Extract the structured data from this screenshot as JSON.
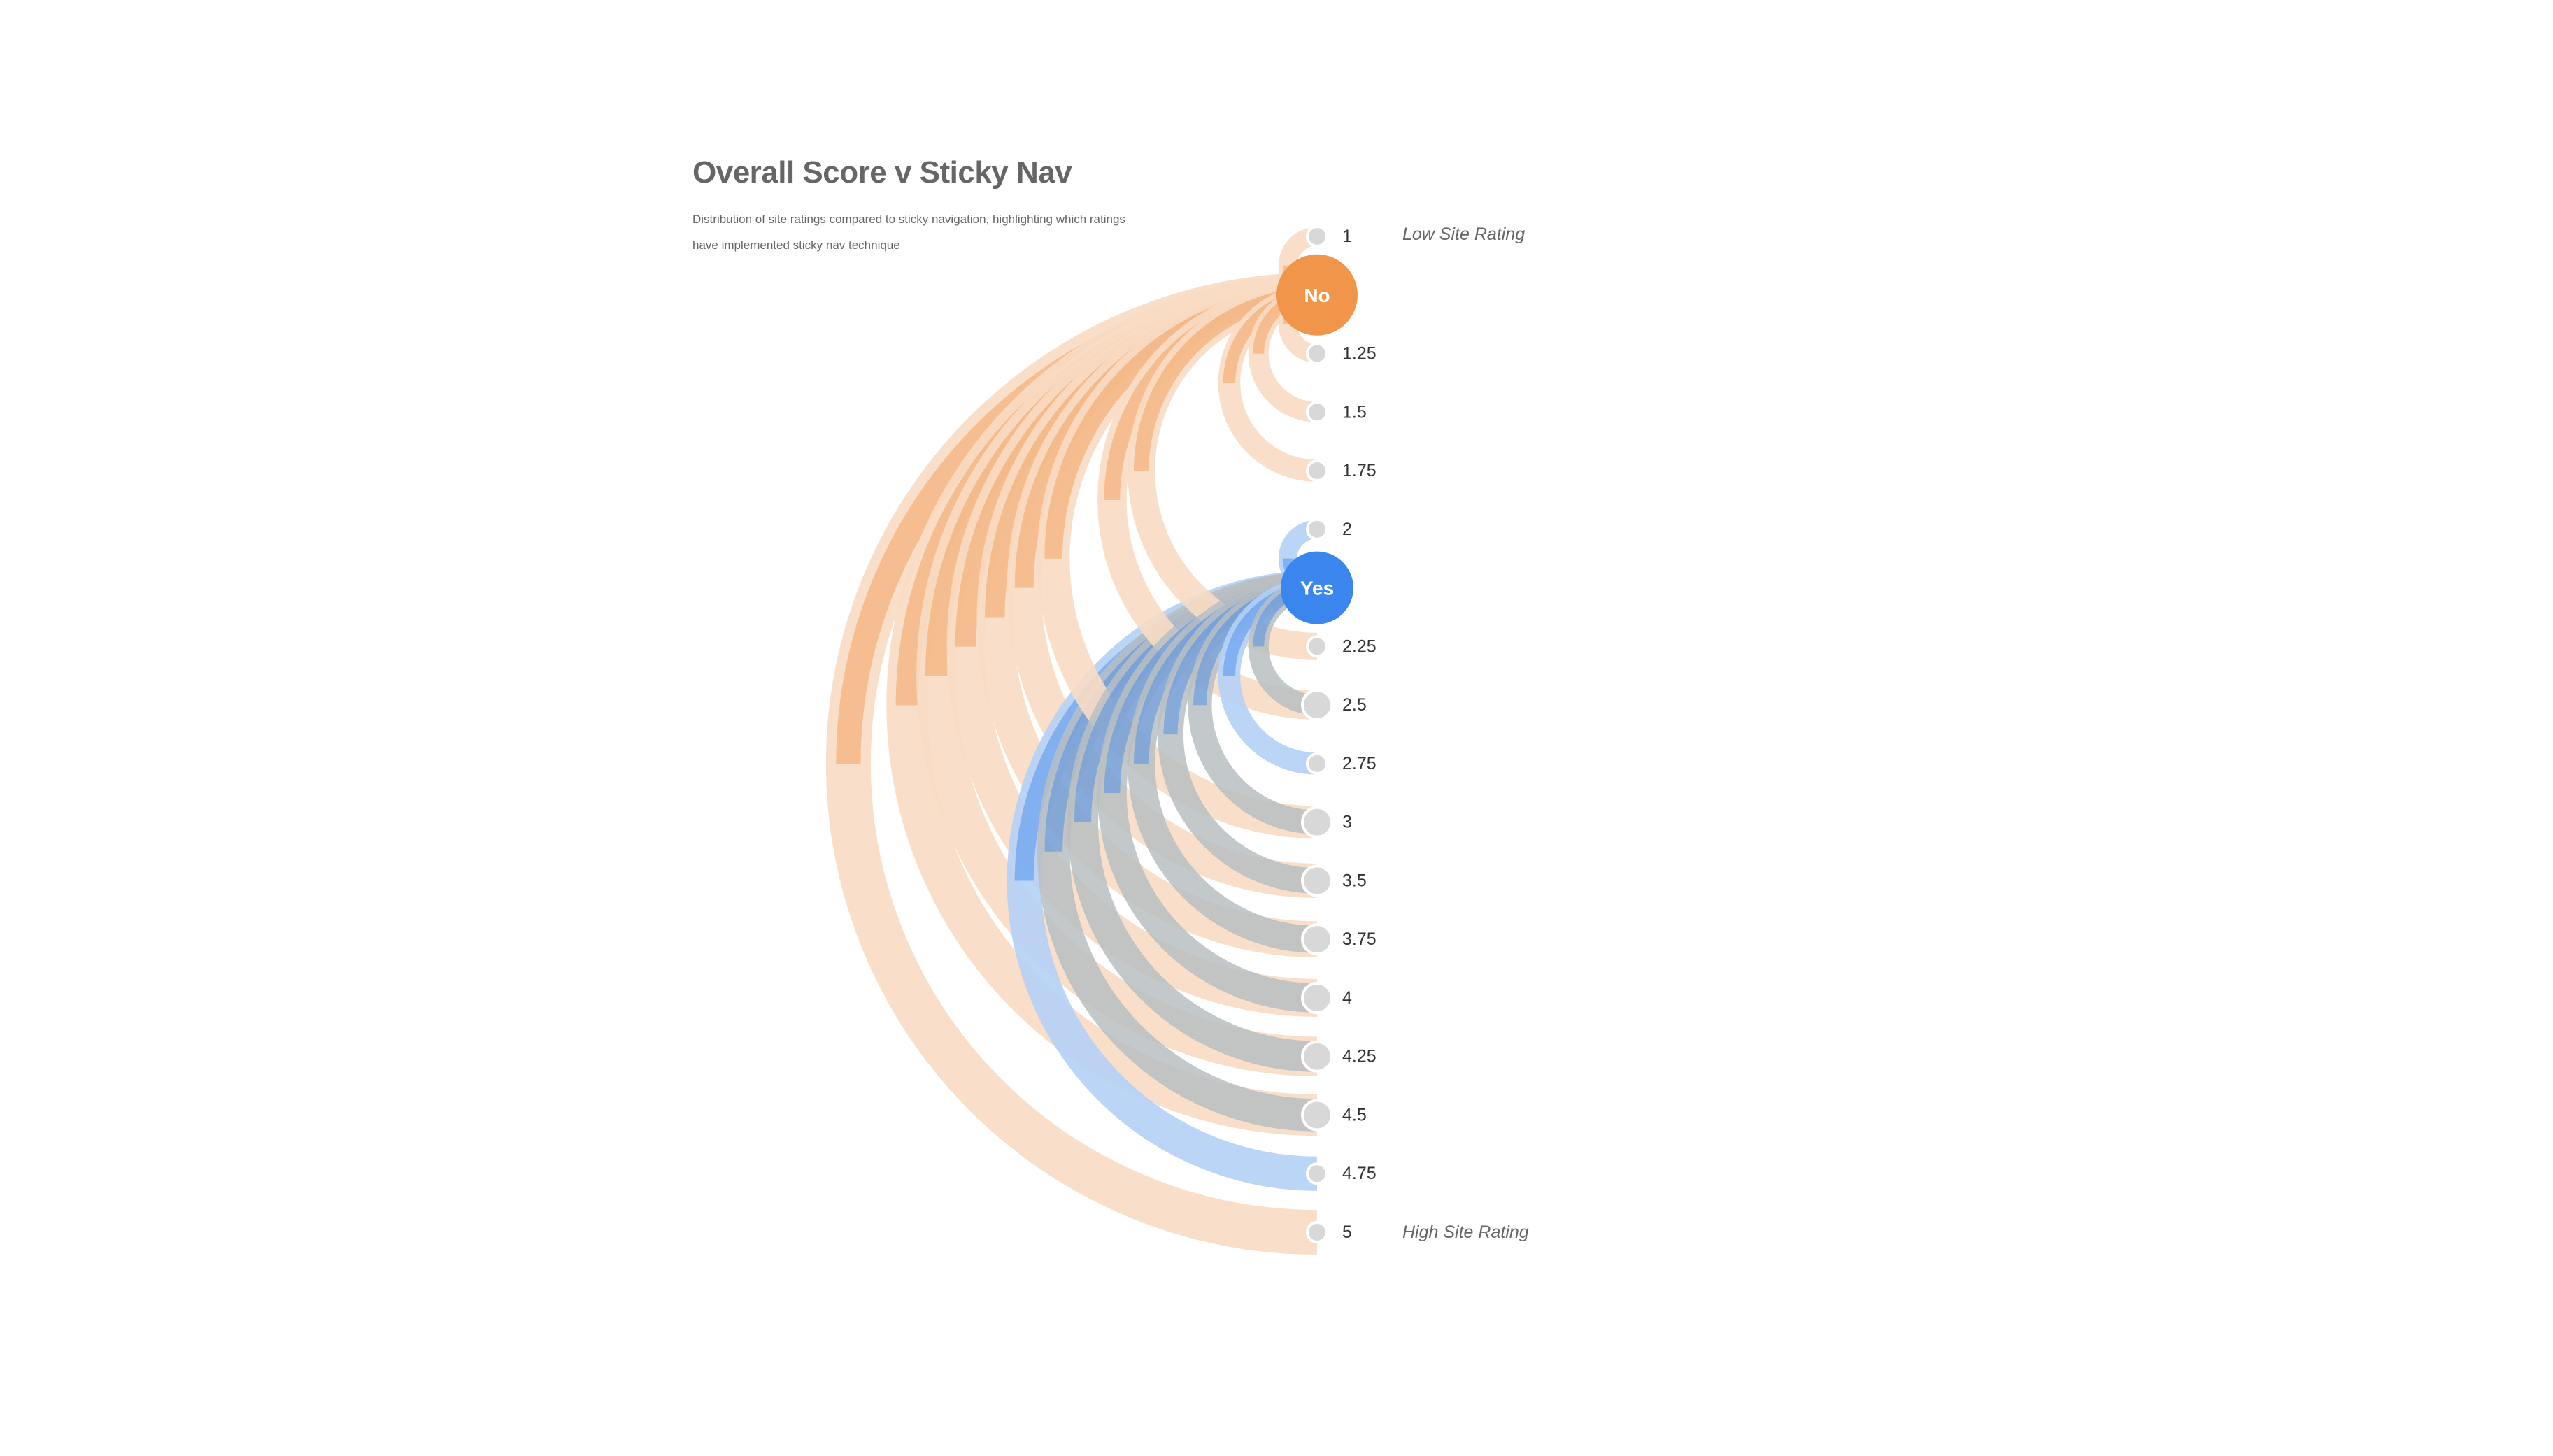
{
  "title": "Overall Score v Sticky Nav",
  "subtitle": "Distribution of site ratings compared to sticky navigation, highlighting which ratings have implemented sticky nav technique",
  "scale_labels": {
    "low": "Low Site Rating",
    "high": "High Site Rating"
  },
  "colors": {
    "no": "#f0954a",
    "no_light": "#f8dcc4",
    "yes": "#3b86ee",
    "yes_light": "#b4d0f6",
    "overlap": "#b9bec2",
    "node": "#d8d8d8"
  },
  "chart_data": {
    "type": "arc",
    "title": "Overall Score v Sticky Nav",
    "subtitle": "Distribution of site ratings compared to sticky navigation, highlighting which ratings have implemented sticky nav technique",
    "groups": [
      {
        "key": "no",
        "label": "No"
      },
      {
        "key": "yes",
        "label": "Yes"
      }
    ],
    "ratings": [
      "1",
      "1.25",
      "1.5",
      "1.75",
      "2",
      "2.25",
      "2.5",
      "2.75",
      "3",
      "3.5",
      "3.75",
      "4",
      "4.25",
      "4.5",
      "4.75",
      "5"
    ],
    "node_order": [
      "1",
      "No",
      "1.25",
      "1.5",
      "1.75",
      "2",
      "Yes",
      "2.25",
      "2.5",
      "2.75",
      "3",
      "3.5",
      "3.75",
      "4",
      "4.25",
      "4.5",
      "4.75",
      "5"
    ],
    "links": [
      {
        "source": "No",
        "target": "1",
        "value": 1
      },
      {
        "source": "No",
        "target": "1.25",
        "value": 1
      },
      {
        "source": "No",
        "target": "1.5",
        "value": 1
      },
      {
        "source": "No",
        "target": "1.75",
        "value": 1
      },
      {
        "source": "No",
        "target": "2.25",
        "value": 1
      },
      {
        "source": "No",
        "target": "2.5",
        "value": 1
      },
      {
        "source": "No",
        "target": "3",
        "value": 1
      },
      {
        "source": "No",
        "target": "3.5",
        "value": 1
      },
      {
        "source": "No",
        "target": "3.75",
        "value": 1
      },
      {
        "source": "No",
        "target": "4",
        "value": 1
      },
      {
        "source": "No",
        "target": "4.25",
        "value": 1
      },
      {
        "source": "No",
        "target": "4.5",
        "value": 1
      },
      {
        "source": "No",
        "target": "5",
        "value": 1
      },
      {
        "source": "Yes",
        "target": "2",
        "value": 1
      },
      {
        "source": "Yes",
        "target": "2.5",
        "value": 1
      },
      {
        "source": "Yes",
        "target": "2.75",
        "value": 1
      },
      {
        "source": "Yes",
        "target": "3",
        "value": 1
      },
      {
        "source": "Yes",
        "target": "3.5",
        "value": 1
      },
      {
        "source": "Yes",
        "target": "3.75",
        "value": 1
      },
      {
        "source": "Yes",
        "target": "4",
        "value": 1
      },
      {
        "source": "Yes",
        "target": "4.25",
        "value": 1
      },
      {
        "source": "Yes",
        "target": "4.5",
        "value": 1
      },
      {
        "source": "Yes",
        "target": "4.75",
        "value": 1
      }
    ]
  }
}
